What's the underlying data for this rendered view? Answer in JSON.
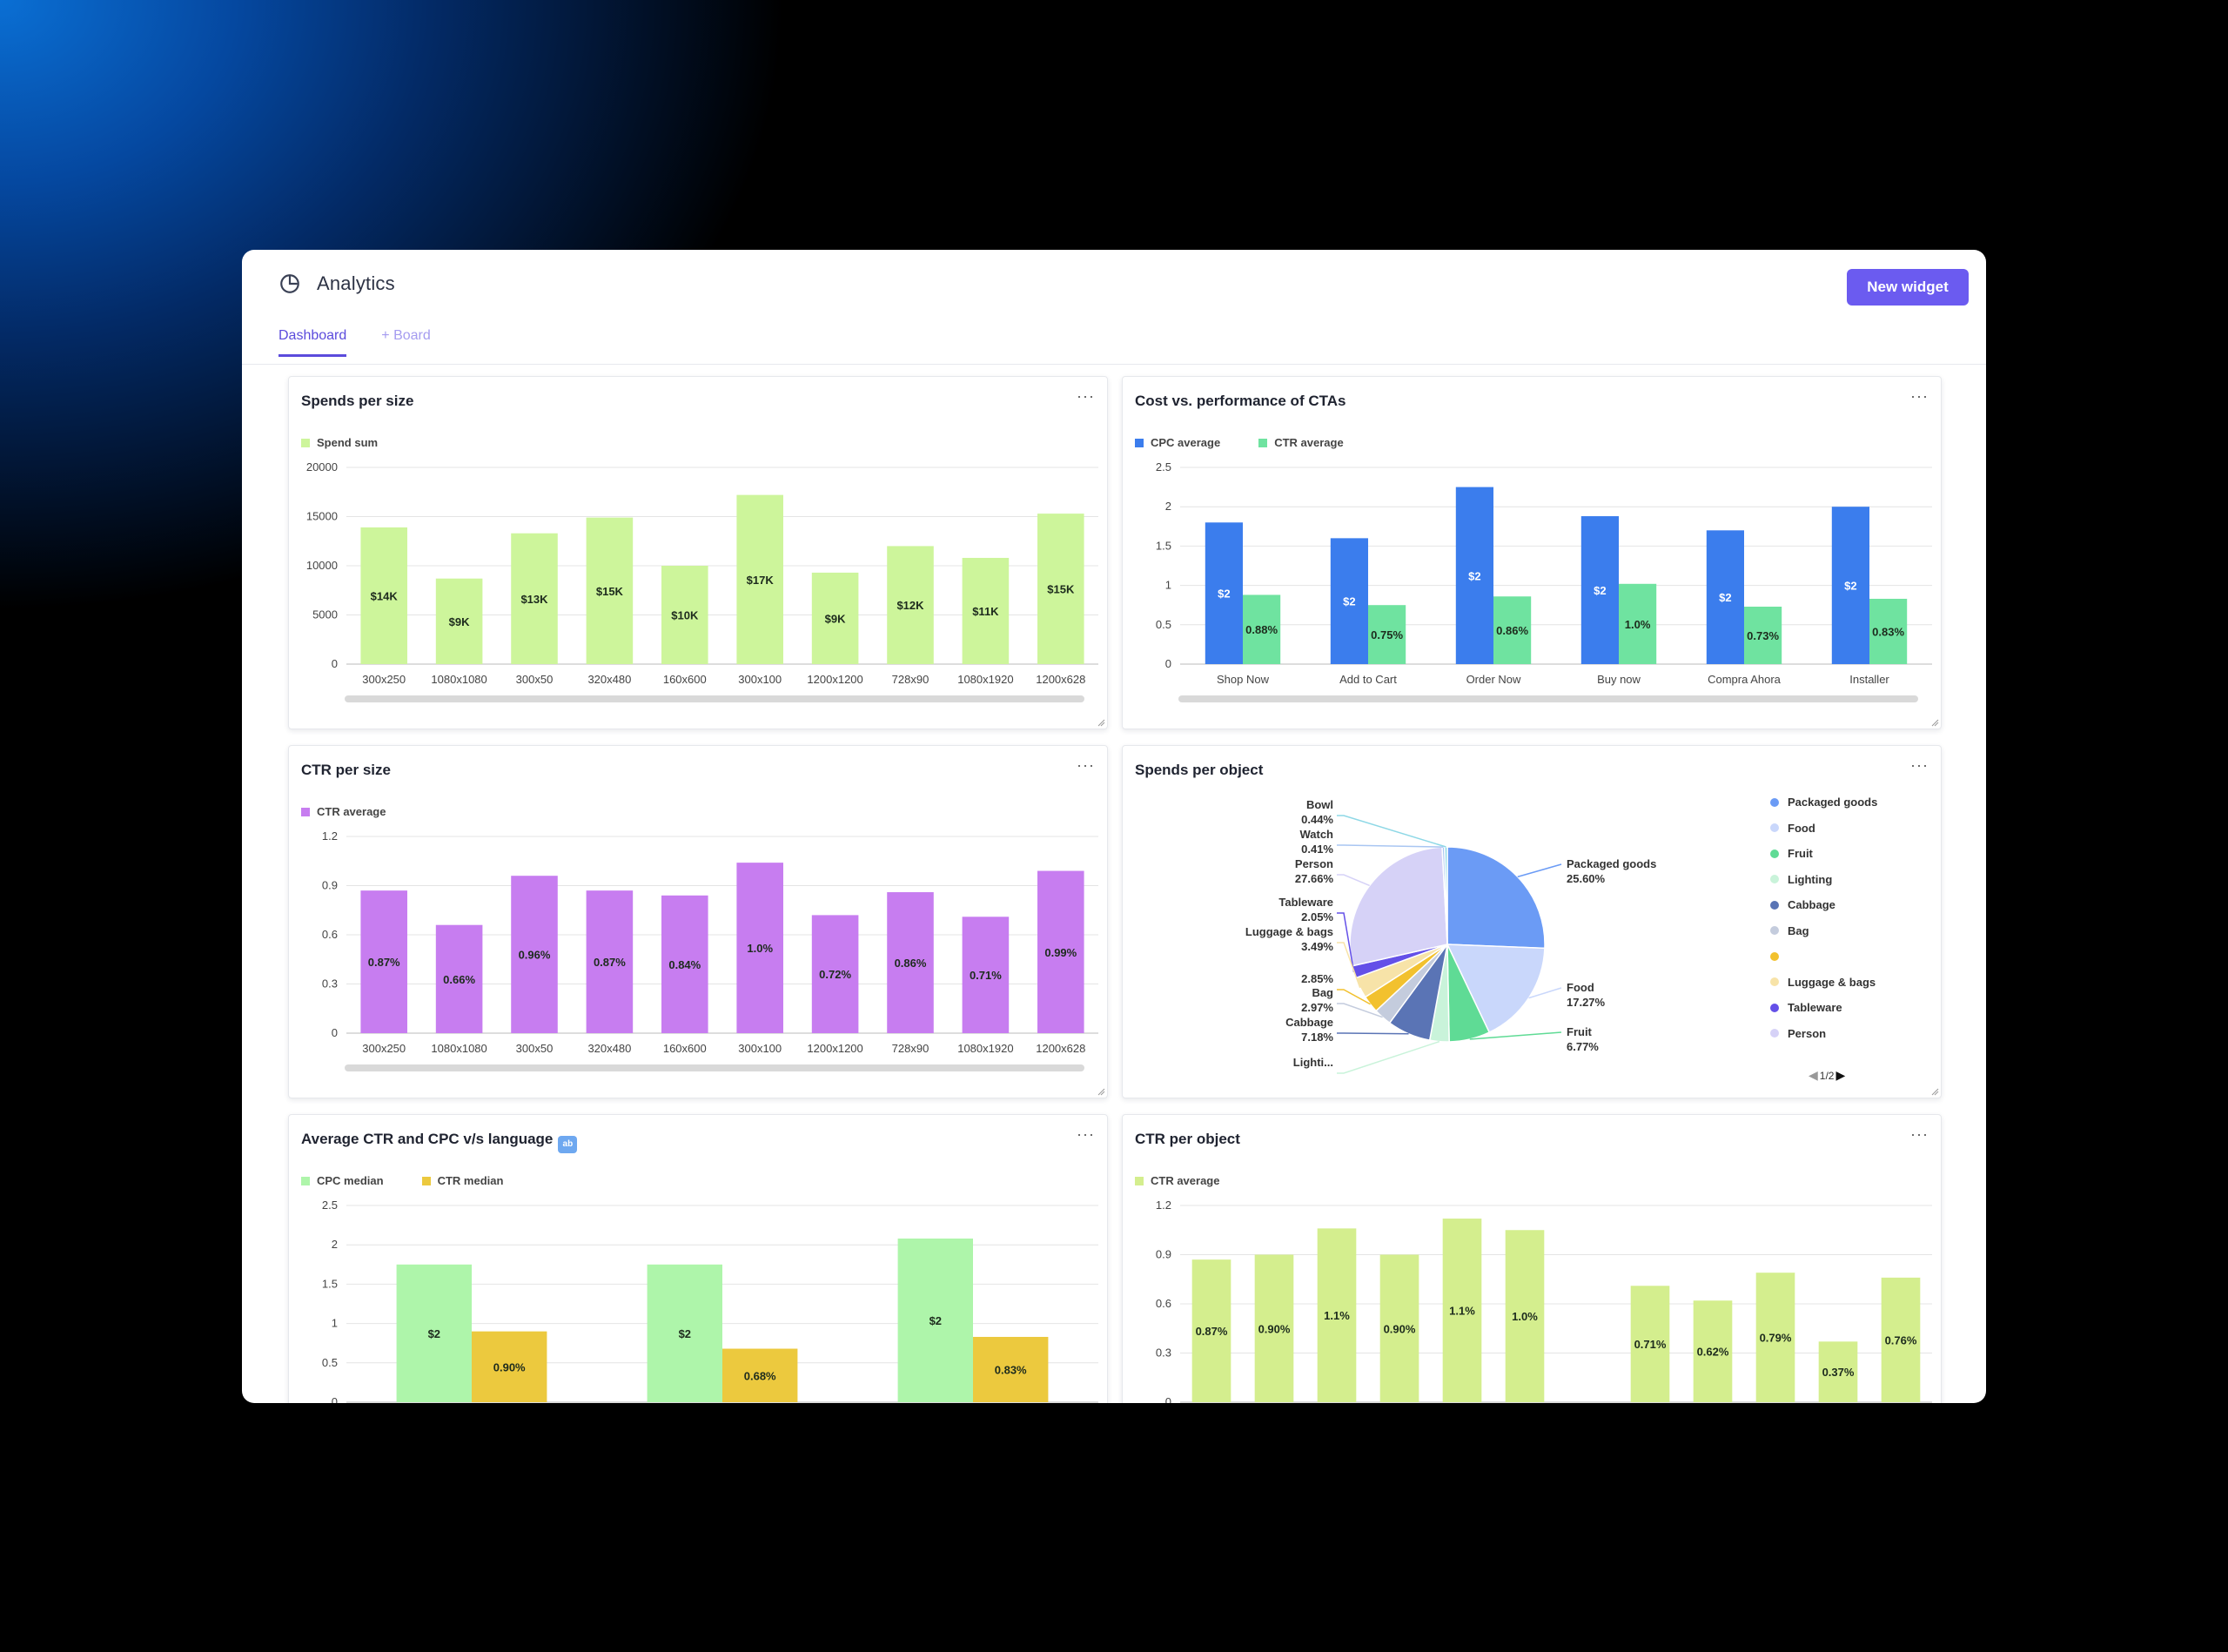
{
  "app": {
    "title": "Analytics",
    "new_widget_label": "New widget",
    "tabs": [
      {
        "label": "Dashboard",
        "active": true
      },
      {
        "label": "+ Board",
        "active": false
      }
    ],
    "accent": "#6b5bf0"
  },
  "widgets": {
    "spends_per_size": {
      "title": "Spends per size",
      "menu": "···"
    },
    "cost_vs_performance": {
      "title": "Cost vs. performance of CTAs",
      "menu": "···"
    },
    "ctr_per_size": {
      "title": "CTR per size",
      "menu": "···"
    },
    "spends_per_object": {
      "title": "Spends per object",
      "menu": "···",
      "pager": "1/2"
    },
    "avg_ctr_cpc_language": {
      "title": "Average CTR and CPC v/s language",
      "menu": "···",
      "badge_icon": "abc-emoji-icon"
    },
    "ctr_per_object": {
      "title": "CTR per object",
      "menu": "···"
    }
  },
  "chart_data": [
    {
      "id": "spends_per_size",
      "type": "bar",
      "categories": [
        "300x250",
        "1080x1080",
        "300x50",
        "320x480",
        "160x600",
        "300x100",
        "1200x1200",
        "728x90",
        "1080x1920",
        "1200x628"
      ],
      "series": [
        {
          "name": "Spend sum",
          "color": "#cdf59b",
          "values": [
            13900,
            8700,
            13300,
            14900,
            10000,
            17200,
            9300,
            12000,
            10800,
            15300
          ],
          "labels": [
            "$14K",
            "$9K",
            "$13K",
            "$15K",
            "$10K",
            "$17K",
            "$9K",
            "$12K",
            "$11K",
            "$15K"
          ]
        }
      ],
      "yticks": [
        "0",
        "5000",
        "10000",
        "15000",
        "20000"
      ],
      "ylim": [
        0,
        20000
      ]
    },
    {
      "id": "cost_vs_performance",
      "type": "bar",
      "categories": [
        "Shop Now",
        "Add to Cart",
        "Order Now",
        "Buy now",
        "Compra Ahora",
        "Installer"
      ],
      "series": [
        {
          "name": "CPC average",
          "color": "#3b7ded",
          "values": [
            1.8,
            1.6,
            2.25,
            1.88,
            1.7,
            2.0
          ],
          "labels": [
            "$2",
            "$2",
            "$2",
            "$2",
            "$2",
            "$2"
          ]
        },
        {
          "name": "CTR average",
          "color": "#6fe3a0",
          "values": [
            0.88,
            0.75,
            0.86,
            1.02,
            0.73,
            0.83
          ],
          "labels": [
            "0.88%",
            "0.75%",
            "0.86%",
            "1.0%",
            "0.73%",
            "0.83%"
          ]
        }
      ],
      "yticks": [
        "0",
        "0.5",
        "1",
        "1.5",
        "2",
        "2.5"
      ],
      "ylim": [
        0,
        2.5
      ]
    },
    {
      "id": "ctr_per_size",
      "type": "bar",
      "categories": [
        "300x250",
        "1080x1080",
        "300x50",
        "320x480",
        "160x600",
        "300x100",
        "1200x1200",
        "728x90",
        "1080x1920",
        "1200x628"
      ],
      "series": [
        {
          "name": "CTR average",
          "color": "#c77df0",
          "values": [
            0.87,
            0.66,
            0.96,
            0.87,
            0.84,
            1.04,
            0.72,
            0.86,
            0.71,
            0.99
          ],
          "labels": [
            "0.87%",
            "0.66%",
            "0.96%",
            "0.87%",
            "0.84%",
            "1.0%",
            "0.72%",
            "0.86%",
            "0.71%",
            "0.99%"
          ]
        }
      ],
      "yticks": [
        "0",
        "0.3",
        "0.6",
        "0.9",
        "1.2"
      ],
      "ylim": [
        0,
        1.2
      ]
    },
    {
      "id": "spends_per_object",
      "type": "pie",
      "slices": [
        {
          "name": "Packaged goods",
          "value": 25.6,
          "color": "#6b9bf5",
          "label": "Packaged goods",
          "pct": "25.60%"
        },
        {
          "name": "Food",
          "value": 17.27,
          "color": "#c9d7fb",
          "label": "Food",
          "pct": "17.27%"
        },
        {
          "name": "Fruit",
          "value": 6.77,
          "color": "#5fdb95",
          "label": "Fruit",
          "pct": "6.77%"
        },
        {
          "name": "Lighting",
          "value": 3.2,
          "color": "#c9f3da",
          "label": "Lighti...",
          "pct": ""
        },
        {
          "name": "Cabbage",
          "value": 7.18,
          "color": "#5a74b5",
          "label": "Cabbage",
          "pct": "7.18%"
        },
        {
          "name": "Bag",
          "value": 2.97,
          "color": "#c4ccdd",
          "label": "Bag",
          "pct": "2.97%"
        },
        {
          "name": "",
          "value": 2.85,
          "color": "#f2c12e",
          "label": "",
          "pct": "2.85%"
        },
        {
          "name": "Luggage & bags",
          "value": 3.49,
          "color": "#f7e3a8",
          "label": "Luggage & bags",
          "pct": "3.49%"
        },
        {
          "name": "Tableware",
          "value": 2.05,
          "color": "#6450e8",
          "label": "Tableware",
          "pct": "2.05%"
        },
        {
          "name": "Person",
          "value": 27.66,
          "color": "#d6d2f7",
          "label": "Person",
          "pct": "27.66%"
        },
        {
          "name": "Watch",
          "value": 0.41,
          "color": "#a9c6f2",
          "label": "Watch",
          "pct": "0.41%"
        },
        {
          "name": "Bowl",
          "value": 0.44,
          "color": "#8ed8e6",
          "label": "Bowl",
          "pct": "0.44%"
        }
      ],
      "legend": [
        "Packaged goods",
        "Food",
        "Fruit",
        "Lighting",
        "Cabbage",
        "Bag",
        "",
        "Luggage & bags",
        "Tableware",
        "Person"
      ]
    },
    {
      "id": "avg_ctr_cpc_language",
      "type": "bar",
      "categories": [
        "",
        "",
        ""
      ],
      "series": [
        {
          "name": "CPC median",
          "color": "#aef5aa",
          "values": [
            1.75,
            1.75,
            2.08
          ],
          "labels": [
            "$2",
            "$2",
            "$2"
          ]
        },
        {
          "name": "CTR median",
          "color": "#ecc93e",
          "values": [
            0.9,
            0.68,
            0.83
          ],
          "labels": [
            "0.90%",
            "0.68%",
            "0.83%"
          ]
        }
      ],
      "yticks": [
        "0",
        "0.5",
        "1",
        "1.5",
        "2",
        "2.5"
      ],
      "ylim": [
        0,
        2.5
      ]
    },
    {
      "id": "ctr_per_object",
      "type": "bar",
      "categories": [
        "",
        "",
        "",
        "",
        "",
        "",
        "",
        "",
        "",
        "",
        "",
        ""
      ],
      "series": [
        {
          "name": "CTR average",
          "color": "#d4ee8e",
          "values": [
            0.87,
            0.9,
            1.06,
            0.9,
            1.12,
            1.05,
            0,
            0.71,
            0.62,
            0.79,
            0.37,
            0.76
          ],
          "labels": [
            "0.87%",
            "0.90%",
            "1.1%",
            "0.90%",
            "1.1%",
            "1.0%",
            "",
            "0.71%",
            "0.62%",
            "0.79%",
            "0.37%",
            "0.76%"
          ]
        }
      ],
      "yticks": [
        "0",
        "0.3",
        "0.6",
        "0.9",
        "1.2"
      ],
      "ylim": [
        0,
        1.2
      ]
    }
  ]
}
